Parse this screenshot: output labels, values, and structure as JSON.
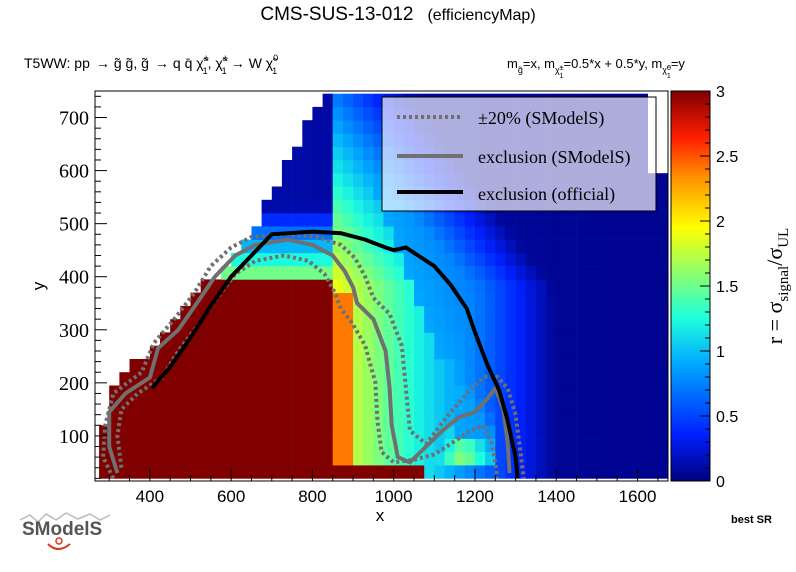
{
  "chart_data": {
    "type": "heatmap",
    "title": "CMS-SUS-13-012",
    "title_suffix": "(efficiencyMap)",
    "process": {
      "lead": "T5WW: pp",
      "arrow1": "→",
      "pair": "g̃ g̃, g̃",
      "arrow2": "→",
      "decay1": "q q̄ χ̃",
      "decay1_sup": "±",
      "decay1_sub": "1",
      "decay2": ", χ̃",
      "decay2_sup": "±",
      "decay2_sub": "1",
      "arrow3": "→",
      "decay3": "W χ̃",
      "decay3_sup": "0",
      "decay3_sub": "1"
    },
    "mass_relation": {
      "m1": "m",
      "m1_sub": "g̃",
      "m1_value": "=x, m",
      "m2_sub": "χ̃",
      "m2_subsup": "±",
      "m2_subsub": "1",
      "m2_value": "=0.5*x + 0.5*y, m",
      "m3_sub": "χ̃",
      "m3_subsup": "0",
      "m3_subsub": "1",
      "m3_value": "=y"
    },
    "xlabel": "x",
    "ylabel": "y",
    "xlim": [
      265,
      1675
    ],
    "ylim": [
      15,
      750
    ],
    "xticks": [
      400,
      600,
      800,
      1000,
      1200,
      1400,
      1600
    ],
    "yticks": [
      100,
      200,
      300,
      400,
      500,
      600,
      700
    ],
    "colorbar": {
      "label": "r = σ",
      "label_sub": "signal",
      "label_mid": "/σ",
      "label_sub2": "UL",
      "range": [
        0,
        3
      ],
      "ticks": [
        "0",
        "0.5",
        "1",
        "1.5",
        "2",
        "2.5",
        "3"
      ]
    },
    "legend": {
      "position": "top-right",
      "entries": [
        {
          "label": "±20% (SModelS)",
          "style": "dotted",
          "color": "#707070"
        },
        {
          "label": "exclusion (SModelS)",
          "style": "solid",
          "color": "#707070"
        },
        {
          "label": "exclusion (official)",
          "style": "solid",
          "color": "#000000"
        }
      ]
    },
    "official_exclusion": [
      [
        405,
        190
      ],
      [
        450,
        230
      ],
      [
        500,
        285
      ],
      [
        550,
        345
      ],
      [
        600,
        400
      ],
      [
        650,
        440
      ],
      [
        700,
        480
      ],
      [
        800,
        485
      ],
      [
        870,
        482
      ],
      [
        930,
        470
      ],
      [
        980,
        455
      ],
      [
        1000,
        450
      ],
      [
        1030,
        455
      ],
      [
        1060,
        440
      ],
      [
        1100,
        420
      ],
      [
        1140,
        385
      ],
      [
        1180,
        340
      ],
      [
        1200,
        295
      ],
      [
        1230,
        235
      ],
      [
        1260,
        185
      ],
      [
        1280,
        130
      ],
      [
        1300,
        60
      ],
      [
        1305,
        20
      ]
    ],
    "smodels_exclusion": [
      [
        320,
        30
      ],
      [
        300,
        80
      ],
      [
        300,
        145
      ],
      [
        340,
        180
      ],
      [
        400,
        210
      ],
      [
        420,
        265
      ],
      [
        470,
        300
      ],
      [
        520,
        355
      ],
      [
        560,
        400
      ],
      [
        610,
        440
      ],
      [
        660,
        460
      ],
      [
        740,
        470
      ],
      [
        800,
        460
      ],
      [
        850,
        440
      ],
      [
        880,
        410
      ],
      [
        900,
        380
      ],
      [
        910,
        350
      ],
      [
        950,
        320
      ],
      [
        980,
        260
      ],
      [
        990,
        190
      ],
      [
        995,
        120
      ],
      [
        1010,
        60
      ],
      [
        1040,
        50
      ],
      [
        1080,
        80
      ],
      [
        1120,
        110
      ],
      [
        1160,
        135
      ],
      [
        1200,
        145
      ],
      [
        1230,
        170
      ],
      [
        1250,
        190
      ],
      [
        1270,
        150
      ],
      [
        1280,
        90
      ],
      [
        1285,
        30
      ]
    ],
    "smodels_upper": [
      [
        310,
        20
      ],
      [
        285,
        60
      ],
      [
        290,
        120
      ],
      [
        310,
        180
      ],
      [
        380,
        220
      ],
      [
        410,
        275
      ],
      [
        460,
        320
      ],
      [
        510,
        370
      ],
      [
        550,
        420
      ],
      [
        600,
        455
      ],
      [
        650,
        475
      ],
      [
        740,
        480
      ],
      [
        810,
        475
      ],
      [
        870,
        460
      ],
      [
        905,
        435
      ],
      [
        930,
        400
      ],
      [
        950,
        360
      ],
      [
        990,
        330
      ],
      [
        1020,
        270
      ],
      [
        1030,
        190
      ],
      [
        1040,
        110
      ],
      [
        1080,
        85
      ],
      [
        1130,
        135
      ],
      [
        1180,
        180
      ],
      [
        1220,
        210
      ],
      [
        1250,
        215
      ],
      [
        1280,
        190
      ],
      [
        1300,
        140
      ],
      [
        1310,
        80
      ],
      [
        1320,
        20
      ]
    ],
    "smodels_lower": [
      [
        330,
        40
      ],
      [
        320,
        100
      ],
      [
        330,
        150
      ],
      [
        370,
        180
      ],
      [
        430,
        210
      ],
      [
        470,
        260
      ],
      [
        520,
        310
      ],
      [
        560,
        355
      ],
      [
        610,
        405
      ],
      [
        660,
        430
      ],
      [
        730,
        440
      ],
      [
        790,
        430
      ],
      [
        830,
        405
      ],
      [
        855,
        370
      ],
      [
        870,
        340
      ],
      [
        900,
        310
      ],
      [
        930,
        270
      ],
      [
        955,
        200
      ],
      [
        960,
        130
      ],
      [
        970,
        70
      ],
      [
        1000,
        50
      ],
      [
        1050,
        55
      ],
      [
        1100,
        65
      ],
      [
        1150,
        90
      ],
      [
        1190,
        110
      ],
      [
        1220,
        120
      ],
      [
        1240,
        90
      ],
      [
        1250,
        50
      ],
      [
        1255,
        20
      ]
    ]
  }
}
